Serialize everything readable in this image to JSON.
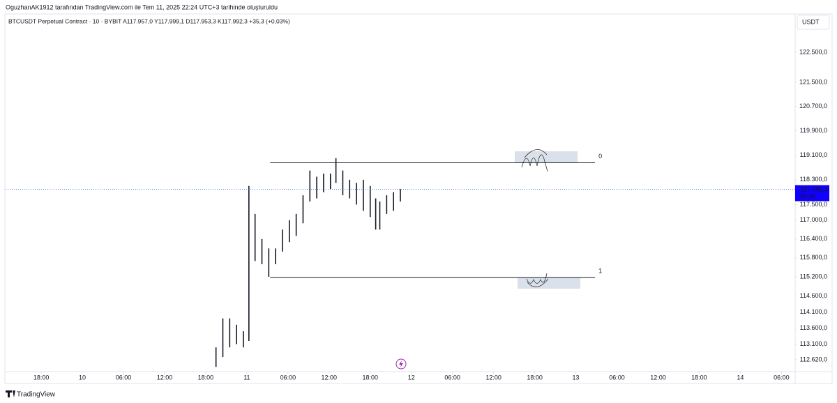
{
  "header": "OguzhanAK1912 tarafından TradingView.com ile Tem 11, 2025 22:24 UTC+3 tarihinde oluşturuldu",
  "footer": "TradingView",
  "chart_data": {
    "type": "range",
    "title": "BTCUSDT Perpetual Contract · 10 · BYBIT  A117.957,0  Y117.999,1  D117.953,3  K117.992,3  +35,3 (+0,03%)",
    "currency": "USDT",
    "color": "#131722",
    "log": true,
    "x": [
      19.5,
      20.5,
      21.5,
      22.5,
      23.5,
      24.3,
      25.2,
      26.2,
      27.2,
      28.2,
      29.2,
      30.2,
      31.2,
      32.2,
      33.2,
      34.2,
      35.2,
      36.2,
      37.0,
      38.0,
      39.0,
      40.0,
      41.0,
      42.0,
      42.8,
      43.4,
      44.4,
      45.4,
      46.4
    ],
    "high": [
      113000,
      113900,
      113900,
      113700,
      113500,
      118100,
      117200,
      116400,
      116100,
      116100,
      116700,
      117000,
      117200,
      117800,
      118600,
      118400,
      118500,
      118500,
      119000,
      118600,
      118300,
      118200,
      118300,
      118100,
      117700,
      117600,
      117800,
      117900,
      118000
    ],
    "low": [
      112400,
      112700,
      113000,
      113100,
      113000,
      113200,
      115700,
      115600,
      115200,
      115600,
      116000,
      116300,
      116500,
      116900,
      117600,
      117700,
      117900,
      118000,
      118200,
      117800,
      117700,
      117500,
      117300,
      117100,
      116700,
      116700,
      117200,
      117300,
      117600
    ],
    "last_price": {
      "value": 117992.3,
      "label": "117.992,3"
    },
    "countdown": "05:34",
    "levels": [
      {
        "label": "0",
        "value": 118850
      },
      {
        "label": "1",
        "value": 115180
      }
    ],
    "levels_x": [
      27.4,
      74.8
    ],
    "xlim": [
      -11.2,
      104
    ],
    "xticks": [
      {
        "value": -6,
        "label": "18:00"
      },
      {
        "value": 0,
        "label": "10"
      },
      {
        "value": 6,
        "label": "06:00"
      },
      {
        "value": 12,
        "label": "12:00"
      },
      {
        "value": 18,
        "label": "18:00"
      },
      {
        "value": 24,
        "label": "11"
      },
      {
        "value": 30,
        "label": "06:00"
      },
      {
        "value": 36,
        "label": "12:00"
      },
      {
        "value": 42,
        "label": "18:00"
      },
      {
        "value": 48,
        "label": "12"
      },
      {
        "value": 54,
        "label": "06:00"
      },
      {
        "value": 60,
        "label": "12:00"
      },
      {
        "value": 66,
        "label": "18:00"
      },
      {
        "value": 72,
        "label": "13"
      },
      {
        "value": 78,
        "label": "06:00"
      },
      {
        "value": 84,
        "label": "12:00"
      },
      {
        "value": 90,
        "label": "18:00"
      },
      {
        "value": 96,
        "label": "14"
      },
      {
        "value": 102,
        "label": "06:00"
      }
    ],
    "ylim": [
      112210,
      123790
    ],
    "yticks": [
      {
        "value": 122500,
        "label": "122.500,0"
      },
      {
        "value": 121500,
        "label": "121.500,0"
      },
      {
        "value": 120700,
        "label": "120.700,0"
      },
      {
        "value": 119900,
        "label": "119.900,0"
      },
      {
        "value": 119100,
        "label": "119.100,0"
      },
      {
        "value": 118300,
        "label": "118.300,0"
      },
      {
        "value": 117500,
        "label": "117.500,0"
      },
      {
        "value": 117000,
        "label": "117.000,0"
      },
      {
        "value": 116400,
        "label": "116.400,0"
      },
      {
        "value": 115800,
        "label": "115.800,0"
      },
      {
        "value": 115200,
        "label": "115.200,0"
      },
      {
        "value": 114600,
        "label": "114.600,0"
      },
      {
        "value": 114100,
        "label": "114.100,0"
      },
      {
        "value": 113600,
        "label": "113.600,0"
      },
      {
        "value": 113100,
        "label": "113.100,0"
      },
      {
        "value": 112620,
        "label": "112.620,0"
      }
    ]
  }
}
